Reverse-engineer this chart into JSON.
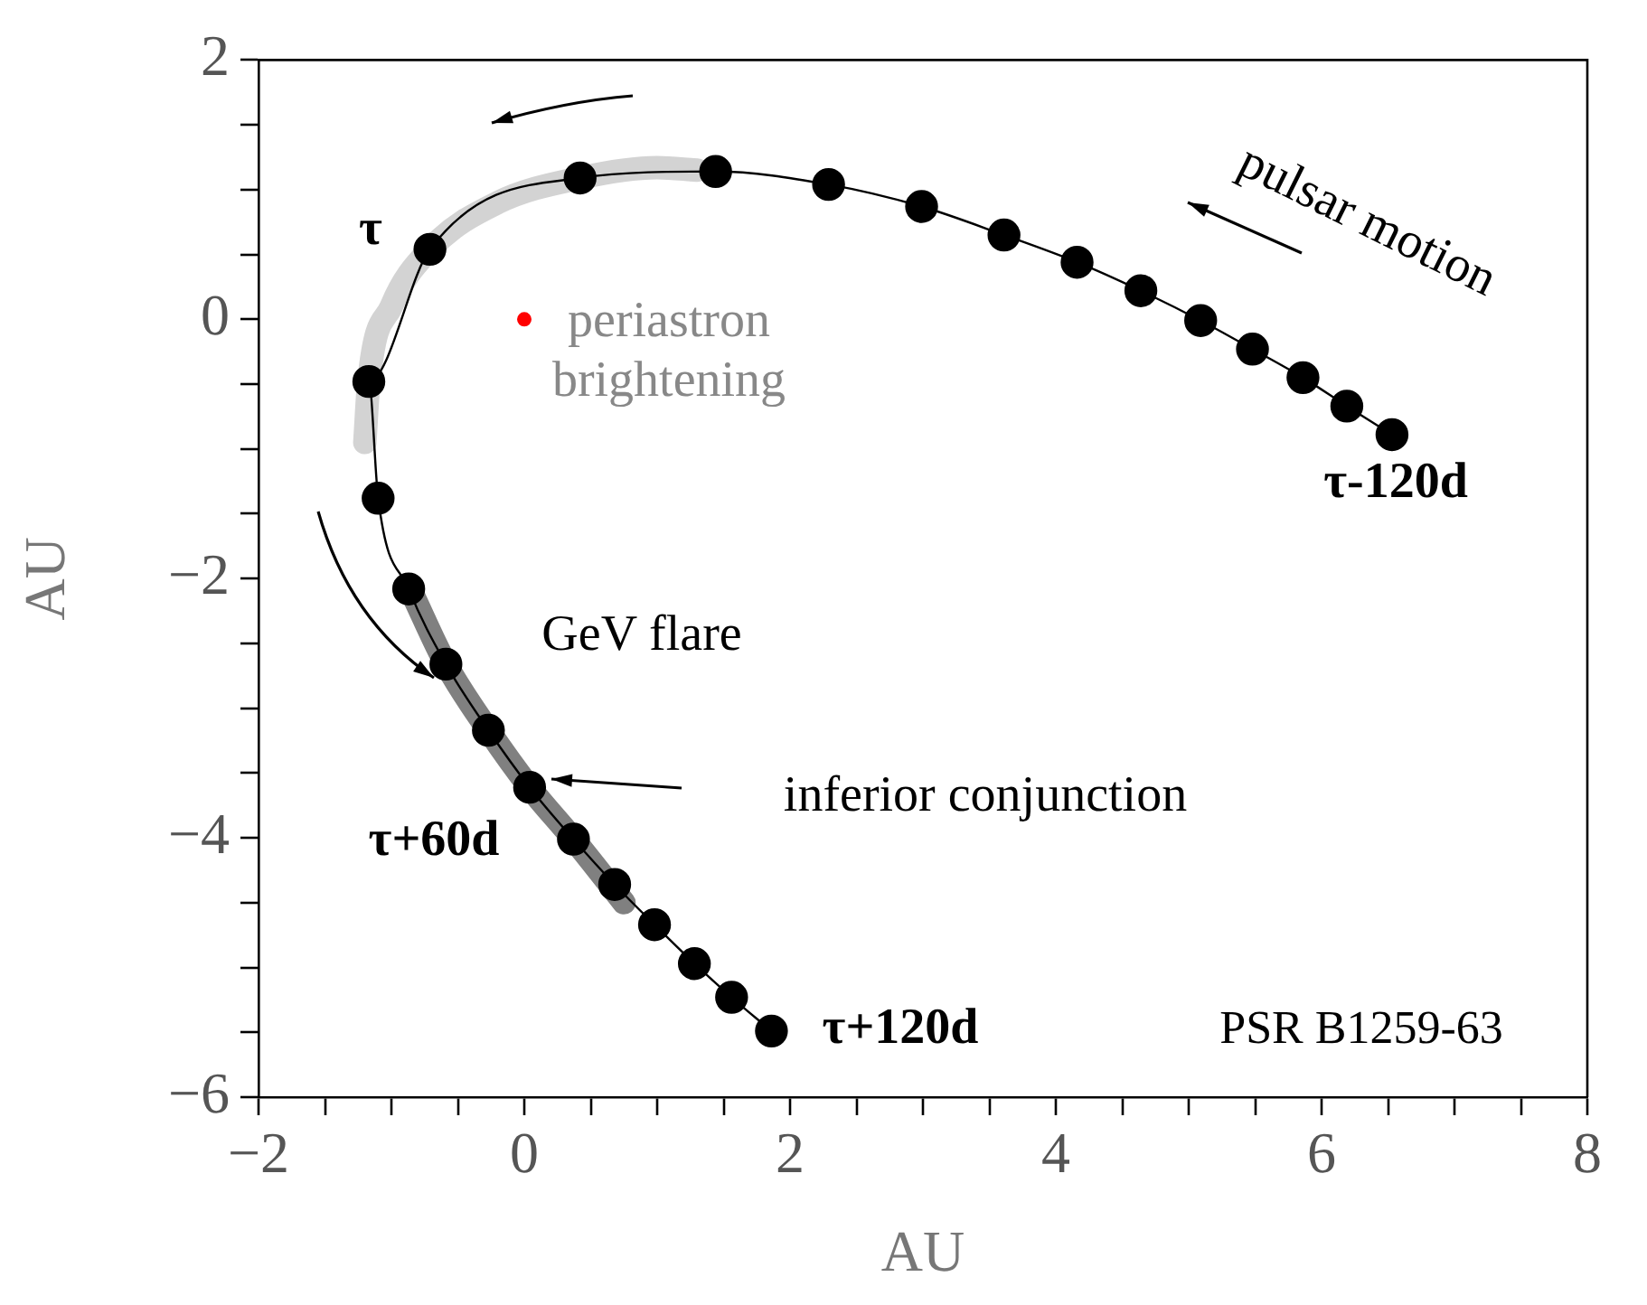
{
  "chart_data": {
    "type": "line",
    "xlabel": "AU",
    "ylabel": "AU",
    "xlim": [
      -2,
      8
    ],
    "ylim": [
      -6,
      2
    ],
    "grid": false,
    "legend": false,
    "xticks": [
      {
        "value": -2,
        "label": "−2"
      },
      {
        "value": -1.5,
        "label": null
      },
      {
        "value": -1,
        "label": null
      },
      {
        "value": -0.5,
        "label": null
      },
      0,
      {
        "value": 0.5,
        "label": null
      },
      {
        "value": 1,
        "label": null
      },
      {
        "value": 1.5,
        "label": null
      },
      2,
      {
        "value": 2.5,
        "label": null
      },
      {
        "value": 3,
        "label": null
      },
      {
        "value": 3.5,
        "label": null
      },
      4,
      {
        "value": 4.5,
        "label": null
      },
      {
        "value": 5,
        "label": null
      },
      {
        "value": 5.5,
        "label": null
      },
      6,
      {
        "value": 6.5,
        "label": null
      },
      {
        "value": 7,
        "label": null
      },
      {
        "value": 7.5,
        "label": null
      },
      8
    ],
    "yticks": [
      {
        "value": -6,
        "label": "−6"
      },
      {
        "value": -5.5,
        "label": null
      },
      {
        "value": -5,
        "label": null
      },
      {
        "value": -4.5,
        "label": null
      },
      {
        "value": -4,
        "label": "−4"
      },
      {
        "value": -3.5,
        "label": null
      },
      {
        "value": -3,
        "label": null
      },
      {
        "value": -2.5,
        "label": null
      },
      {
        "value": -2,
        "label": "−2"
      },
      {
        "value": -1.5,
        "label": null
      },
      {
        "value": -1,
        "label": null
      },
      {
        "value": -0.5,
        "label": null
      },
      0,
      {
        "value": 0.5,
        "label": null
      },
      {
        "value": 1,
        "label": null
      },
      {
        "value": 1.5,
        "label": null
      },
      2
    ],
    "series": [
      {
        "color": "#d3d3d3",
        "marker": "none",
        "x": [
          1.3,
          1.0,
          0.42,
          -0.2,
          -0.71,
          -1.0,
          -1.17,
          -1.2
        ],
        "values": [
          1.15,
          1.17,
          1.09,
          0.9,
          0.54,
          0.1,
          -0.48,
          -0.95
        ]
      },
      {
        "color": "#808080",
        "marker": "none",
        "x": [
          -0.85,
          -0.59,
          -0.27,
          0.04,
          0.37,
          0.75
        ],
        "values": [
          -2.1,
          -2.66,
          -3.17,
          -3.61,
          -4.01,
          -4.5
        ]
      },
      {
        "color": "#000000",
        "marker": "circle",
        "x": [
          6.53,
          6.19,
          5.86,
          5.48,
          5.09,
          4.64,
          4.16,
          3.61,
          2.99,
          2.29,
          1.44,
          0.42,
          -0.71,
          -1.17,
          -1.1,
          -0.87,
          -0.59,
          -0.27,
          0.04,
          0.37,
          0.68,
          0.98,
          1.28,
          1.56,
          1.86
        ],
        "values": [
          -0.89,
          -0.67,
          -0.45,
          -0.23,
          -0.01,
          0.22,
          0.44,
          0.65,
          0.87,
          1.04,
          1.14,
          1.09,
          0.54,
          -0.48,
          -1.38,
          -2.08,
          -2.66,
          -3.17,
          -3.61,
          -4.01,
          -4.36,
          -4.67,
          -4.97,
          -5.23,
          -5.49
        ]
      },
      {
        "type": "scatter",
        "color": "#ff0000",
        "marker": "circle",
        "x": [
          0
        ],
        "values": [
          0
        ]
      }
    ],
    "annotations": [
      "periastron\nbrightening",
      "τ",
      "τ-120d",
      "GeV flare",
      "inferior conjunction",
      "τ+60d",
      "τ+120d",
      "pulsar motion",
      "PSR B1259-63"
    ]
  }
}
